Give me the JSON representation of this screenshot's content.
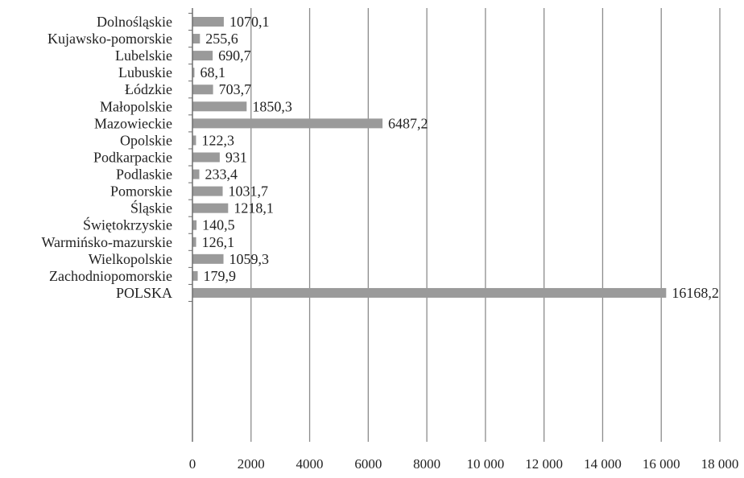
{
  "chart_data": {
    "type": "bar",
    "orientation": "horizontal",
    "title": "",
    "xlabel": "",
    "ylabel": "",
    "categories": [
      "Dolnośląskie",
      "Kujawsko-pomorskie",
      "Lubelskie",
      "Lubuskie",
      "Łódzkie",
      "Małopolskie",
      "Mazowieckie",
      "Opolskie",
      "Podkarpackie",
      "Podlaskie",
      "Pomorskie",
      "Śląskie",
      "Świętokrzyskie",
      "Warmińsko-mazurskie",
      "Wielkopolskie",
      "Zachodniopomorskie",
      "POLSKA"
    ],
    "values": [
      1070.1,
      255.6,
      690.7,
      68.1,
      703.7,
      1850.3,
      6487.2,
      122.3,
      931,
      233.4,
      1031.7,
      1218.1,
      140.5,
      126.1,
      1059.3,
      179.9,
      16168.2
    ],
    "value_labels": [
      "1070,1",
      "255,6",
      "690,7",
      "68,1",
      "703,7",
      "1850,3",
      "6487,2",
      "122,3",
      "931",
      "233,4",
      "1031,7",
      "1218,1",
      "140,5",
      "126,1",
      "1059,3",
      "179,9",
      "16168,2"
    ],
    "xlim": [
      0,
      18000
    ],
    "x_ticks": [
      0,
      2000,
      4000,
      6000,
      8000,
      10000,
      12000,
      14000,
      16000,
      18000
    ],
    "x_tick_labels": [
      "0",
      "2000",
      "4000",
      "6000",
      "8000",
      "10 000",
      "12 000",
      "14 000",
      "16 000",
      "18 000"
    ],
    "grid": "vertical",
    "legend": "none",
    "colors": {
      "bar": "#9a9a9a",
      "grid": "#8c8c8c",
      "axis": "#6e6e6e",
      "text": "#222222"
    }
  }
}
